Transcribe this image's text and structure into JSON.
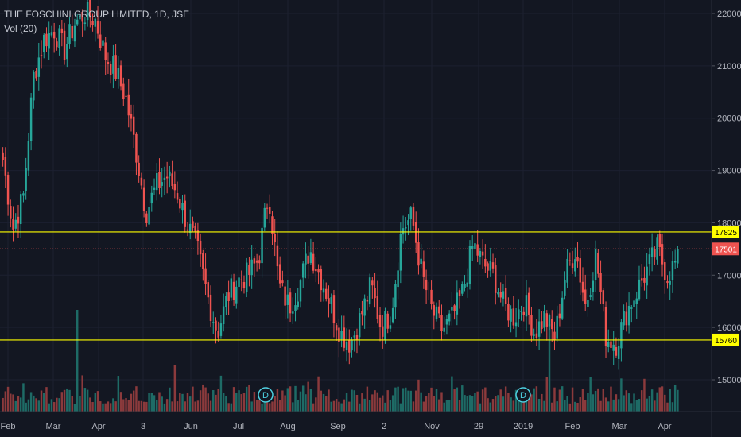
{
  "legend": {
    "symbol": "THE FOSCHINI GROUP LIMITED, 1D, JSE",
    "volume": "Vol (20)"
  },
  "colors": {
    "background": "#131722",
    "up": "#26a69a",
    "down": "#ef5350",
    "up_volume": "#1e6b66",
    "down_volume": "#8b3a3c",
    "level_line": "#ffff00",
    "last_price": "#ef5350",
    "axis_text": "#b2b5be",
    "dividend_marker": "#4dd0e1"
  },
  "chart_data": {
    "type": "candlestick",
    "title": "THE FOSCHINI GROUP LIMITED, 1D, JSE",
    "ylim": [
      14500,
      22300
    ],
    "y_ticks": [
      "22000",
      "21000",
      "20000",
      "19000",
      "18000",
      "17000",
      "16000",
      "15000"
    ],
    "x_ticks": [
      "Feb",
      "Mar",
      "Apr",
      "3",
      "Jun",
      "Jul",
      "Aug",
      "Sep",
      "2",
      "Nov",
      "29",
      "2019",
      "Feb",
      "Mar",
      "Apr"
    ],
    "horizontal_lines": [
      {
        "value": 17825,
        "label": "17825",
        "style": "solid"
      },
      {
        "value": 15760,
        "label": "15760",
        "style": "solid"
      }
    ],
    "last_price": {
      "value": 17501,
      "label": "17501",
      "style": "dotted"
    },
    "dividend_markers": [
      {
        "label": "D",
        "x_tick_index": 6.3
      },
      {
        "label": "D",
        "x_tick_index": 11.4
      }
    ],
    "price_anchors": [
      [
        0,
        19200
      ],
      [
        1,
        17900
      ],
      [
        2,
        18500
      ],
      [
        3,
        20800
      ],
      [
        4,
        21500
      ],
      [
        5,
        21700
      ],
      [
        6,
        21300
      ],
      [
        7,
        21800
      ],
      [
        8,
        22000
      ],
      [
        9,
        21900
      ],
      [
        10,
        21200
      ],
      [
        11,
        20900
      ],
      [
        12,
        20400
      ],
      [
        13,
        19400
      ],
      [
        14,
        18200
      ],
      [
        15,
        18700
      ],
      [
        16,
        18900
      ],
      [
        17,
        18600
      ],
      [
        18,
        18000
      ],
      [
        19,
        17500
      ],
      [
        20,
        16600
      ],
      [
        21,
        15900
      ],
      [
        22,
        16600
      ],
      [
        23,
        16900
      ],
      [
        24,
        17000
      ],
      [
        25,
        17300
      ],
      [
        26,
        18600
      ],
      [
        27,
        16800
      ],
      [
        28,
        16400
      ],
      [
        29,
        16800
      ],
      [
        30,
        17500
      ],
      [
        31,
        17000
      ],
      [
        32,
        16500
      ],
      [
        33,
        15900
      ],
      [
        34,
        15700
      ],
      [
        35,
        16200
      ],
      [
        36,
        16800
      ],
      [
        37,
        16000
      ],
      [
        38,
        16300
      ],
      [
        39,
        17900
      ],
      [
        40,
        18100
      ],
      [
        41,
        17000
      ],
      [
        42,
        16300
      ],
      [
        43,
        15950
      ],
      [
        44,
        16200
      ],
      [
        45,
        16700
      ],
      [
        46,
        17600
      ],
      [
        47,
        17200
      ],
      [
        48,
        17000
      ],
      [
        49,
        16400
      ],
      [
        50,
        16200
      ],
      [
        51,
        16500
      ],
      [
        52,
        15900
      ],
      [
        53,
        16200
      ],
      [
        54,
        15800
      ],
      [
        55,
        17000
      ],
      [
        56,
        17500
      ],
      [
        57,
        16400
      ],
      [
        58,
        17400
      ],
      [
        59,
        15800
      ],
      [
        60,
        15700
      ],
      [
        61,
        16300
      ],
      [
        62,
        16700
      ],
      [
        63,
        17100
      ],
      [
        64,
        17500
      ],
      [
        65,
        17000
      ],
      [
        66,
        17300
      ]
    ],
    "volume_note": "Vol (20) histogram, spikes near Mar and Jan 2019"
  }
}
